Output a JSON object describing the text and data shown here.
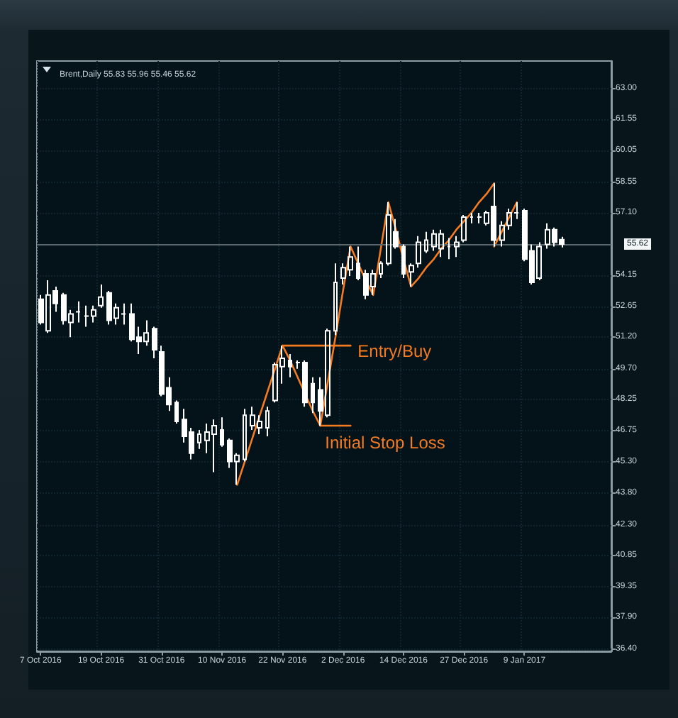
{
  "chart_data": {
    "type": "candlestick",
    "title": "Brent,Daily 55.83 55.96 55.46 55.62",
    "categories": [
      "7 Oct 2016",
      null,
      null,
      null,
      null,
      null,
      null,
      null,
      "19 Oct 2016",
      null,
      null,
      null,
      null,
      null,
      null,
      null,
      "31 Oct 2016",
      null,
      null,
      null,
      null,
      null,
      null,
      null,
      "10 Nov 2016",
      null,
      null,
      null,
      null,
      null,
      null,
      null,
      "22 Nov 2016",
      null,
      null,
      null,
      null,
      null,
      null,
      null,
      "2 Dec 2016",
      null,
      null,
      null,
      null,
      null,
      null,
      null,
      "14 Dec 2016",
      null,
      null,
      null,
      null,
      null,
      null,
      null,
      "27 Dec 2016",
      null,
      null,
      null,
      null,
      null,
      null,
      null,
      "9 Jan 2017",
      null,
      null,
      null,
      null,
      null,
      null,
      null,
      null,
      null,
      null,
      null
    ],
    "series": [
      {
        "color": "#ffffff",
        "ohlc": [
          [
            53.0,
            53.2,
            51.8,
            51.9
          ],
          [
            51.5,
            53.9,
            51.4,
            53.2
          ],
          [
            53.4,
            53.6,
            52.4,
            52.8
          ],
          [
            53.2,
            53.3,
            51.8,
            52.0
          ],
          [
            51.9,
            52.5,
            51.2,
            52.3
          ],
          [
            52.4,
            52.9,
            51.9,
            52.4
          ],
          [
            52.2,
            52.7,
            51.7,
            52.2
          ],
          [
            52.2,
            52.7,
            51.9,
            52.5
          ],
          [
            52.7,
            53.7,
            52.6,
            53.1
          ],
          [
            53.3,
            53.4,
            51.8,
            52.0
          ],
          [
            52.1,
            52.8,
            51.8,
            52.6
          ],
          [
            52.3,
            52.8,
            51.8,
            52.3
          ],
          [
            52.3,
            52.8,
            51.0,
            51.1
          ],
          [
            51.2,
            51.7,
            50.4,
            51.0
          ],
          [
            51.0,
            52.0,
            50.8,
            51.4
          ],
          [
            51.6,
            51.7,
            50.2,
            50.6
          ],
          [
            50.5,
            50.8,
            48.4,
            48.5
          ],
          [
            48.8,
            49.3,
            47.7,
            48.0
          ],
          [
            48.1,
            48.2,
            47.1,
            47.2
          ],
          [
            47.3,
            47.8,
            46.2,
            46.5
          ],
          [
            46.7,
            46.9,
            45.4,
            45.7
          ],
          [
            46.2,
            46.8,
            45.9,
            46.6
          ],
          [
            46.3,
            47.1,
            45.7,
            46.7
          ],
          [
            46.6,
            47.3,
            44.8,
            47.0
          ],
          [
            46.8,
            47.4,
            46.0,
            46.1
          ],
          [
            46.3,
            46.4,
            45.0,
            45.3
          ],
          [
            45.3,
            45.7,
            44.2,
            45.6
          ],
          [
            45.4,
            47.8,
            45.3,
            47.5
          ],
          [
            47.0,
            47.9,
            46.8,
            47.5
          ],
          [
            46.9,
            47.5,
            46.6,
            47.2
          ],
          [
            46.9,
            47.9,
            46.5,
            47.7
          ],
          [
            48.2,
            50.0,
            48.1,
            49.9
          ],
          [
            49.8,
            50.8,
            49.0,
            50.2
          ],
          [
            50.1,
            50.4,
            49.3,
            49.8
          ],
          [
            50.0,
            50.1,
            49.7,
            50.0
          ],
          [
            50.0,
            50.1,
            47.9,
            48.1
          ],
          [
            49.0,
            49.3,
            47.6,
            48.1
          ],
          [
            48.7,
            49.3,
            47.0,
            47.7
          ],
          [
            47.5,
            51.6,
            47.4,
            51.5
          ],
          [
            51.5,
            54.7,
            51.3,
            53.8
          ],
          [
            54.0,
            54.7,
            53.7,
            54.5
          ],
          [
            54.4,
            55.5,
            54.1,
            55.0
          ],
          [
            54.7,
            55.5,
            53.9,
            54.0
          ],
          [
            54.2,
            54.4,
            53.0,
            53.2
          ],
          [
            53.6,
            54.4,
            53.2,
            54.2
          ],
          [
            54.2,
            54.8,
            54.0,
            54.7
          ],
          [
            54.7,
            57.6,
            54.6,
            57.0
          ],
          [
            56.2,
            56.8,
            55.4,
            55.5
          ],
          [
            55.5,
            55.6,
            54.0,
            54.2
          ],
          [
            54.3,
            54.7,
            53.6,
            54.6
          ],
          [
            54.7,
            56.0,
            54.5,
            55.7
          ],
          [
            55.3,
            56.2,
            55.2,
            55.8
          ],
          [
            55.5,
            56.3,
            55.3,
            56.1
          ],
          [
            55.4,
            56.3,
            55.0,
            56.1
          ],
          [
            55.5,
            55.9,
            54.9,
            55.5
          ],
          [
            55.5,
            56.0,
            55.0,
            55.7
          ],
          [
            55.8,
            57.0,
            55.7,
            56.9
          ],
          [
            56.9,
            57.1,
            56.6,
            56.9
          ],
          [
            56.9,
            57.1,
            56.6,
            56.9
          ],
          [
            56.6,
            57.2,
            56.5,
            57.1
          ],
          [
            57.4,
            58.5,
            55.5,
            55.8
          ],
          [
            55.8,
            56.7,
            55.5,
            56.5
          ],
          [
            56.5,
            57.3,
            56.3,
            57.1
          ],
          [
            57.1,
            57.6,
            56.8,
            57.1
          ],
          [
            57.2,
            57.3,
            54.8,
            54.9
          ],
          [
            55.3,
            55.6,
            53.7,
            53.8
          ],
          [
            54.0,
            55.7,
            53.9,
            55.5
          ],
          [
            55.6,
            56.6,
            55.4,
            56.3
          ],
          [
            56.3,
            56.4,
            55.5,
            55.7
          ],
          [
            55.83,
            55.96,
            55.46,
            55.62
          ],
          null,
          null,
          null,
          null,
          null,
          null
        ]
      },
      {
        "type": "line",
        "color": "#f47b20",
        "values": [
          null,
          null,
          null,
          null,
          null,
          null,
          null,
          null,
          null,
          null,
          null,
          null,
          null,
          null,
          null,
          null,
          null,
          null,
          null,
          null,
          null,
          null,
          null,
          null,
          null,
          null,
          44.2,
          45.3,
          46.4,
          47.5,
          48.6,
          49.7,
          50.8,
          50.1,
          49.3,
          48.5,
          47.7,
          47.0,
          49.1,
          51.2,
          53.4,
          55.5,
          54.7,
          53.9,
          53.2,
          55.4,
          57.6,
          56.3,
          54.9,
          53.6,
          54.0,
          54.5,
          54.9,
          55.4,
          55.8,
          56.3,
          56.7,
          57.1,
          57.6,
          58.0,
          58.5,
          null,
          null,
          null,
          null,
          null,
          null,
          null,
          null,
          null,
          null,
          null,
          null,
          null,
          null,
          null
        ]
      },
      {
        "type": "line",
        "color": "#f47b20",
        "values": [
          null,
          null,
          null,
          null,
          null,
          null,
          null,
          null,
          null,
          null,
          null,
          null,
          null,
          null,
          null,
          null,
          null,
          null,
          null,
          null,
          null,
          null,
          null,
          null,
          null,
          null,
          null,
          null,
          null,
          null,
          null,
          null,
          null,
          null,
          null,
          null,
          null,
          null,
          null,
          null,
          null,
          null,
          null,
          null,
          null,
          null,
          null,
          null,
          null,
          null,
          null,
          null,
          null,
          null,
          null,
          null,
          null,
          null,
          null,
          null,
          55.5,
          56.2,
          56.9,
          57.6,
          null,
          null,
          null,
          null,
          null,
          null,
          null,
          null,
          null,
          null,
          null,
          null
        ]
      },
      {
        "type": "line",
        "name": "Entry/Buy",
        "color": "#f47b20",
        "values": [
          null,
          null,
          null,
          null,
          null,
          null,
          null,
          null,
          null,
          null,
          null,
          null,
          null,
          null,
          null,
          null,
          null,
          null,
          null,
          null,
          null,
          null,
          null,
          null,
          null,
          null,
          null,
          null,
          null,
          null,
          null,
          null,
          50.8,
          50.8,
          50.8,
          50.8,
          50.8,
          50.8,
          50.8,
          50.8,
          50.8,
          50.8,
          null,
          null,
          null,
          null,
          null,
          null,
          null,
          null,
          null,
          null,
          null,
          null,
          null,
          null,
          null,
          null,
          null,
          null,
          null,
          null,
          null,
          null,
          null,
          null,
          null,
          null,
          null,
          null,
          null,
          null,
          null,
          null,
          null,
          null
        ]
      },
      {
        "type": "line",
        "name": "Initial Stop Loss",
        "color": "#f47b20",
        "values": [
          null,
          null,
          null,
          null,
          null,
          null,
          null,
          null,
          null,
          null,
          null,
          null,
          null,
          null,
          null,
          null,
          null,
          null,
          null,
          null,
          null,
          null,
          null,
          null,
          null,
          null,
          null,
          null,
          null,
          null,
          null,
          null,
          null,
          null,
          null,
          null,
          null,
          47.0,
          47.0,
          47.0,
          47.0,
          47.0,
          null,
          null,
          null,
          null,
          null,
          null,
          null,
          null,
          null,
          null,
          null,
          null,
          null,
          null,
          null,
          null,
          null,
          null,
          null,
          null,
          null,
          null,
          null,
          null,
          null,
          null,
          null,
          null,
          null,
          null,
          null,
          null,
          null,
          null
        ]
      }
    ],
    "ylim": [
      36.3,
      64.3
    ],
    "yticks": [
      {
        "value": 63,
        "label": "63.00"
      },
      {
        "value": 61.55,
        "label": "61.55"
      },
      {
        "value": 60.05,
        "label": "60.05"
      },
      {
        "value": 58.55,
        "label": "58.55"
      },
      {
        "value": 57.1,
        "label": "57.10"
      },
      {
        "value": 54.15,
        "label": "54.15"
      },
      {
        "value": 52.65,
        "label": "52.65"
      },
      {
        "value": 51.2,
        "label": "51.20"
      },
      {
        "value": 49.7,
        "label": "49.70"
      },
      {
        "value": 48.25,
        "label": "48.25"
      },
      {
        "value": 46.75,
        "label": "46.75"
      },
      {
        "value": 45.3,
        "label": "45.30"
      },
      {
        "value": 43.8,
        "label": "43.80"
      },
      {
        "value": 42.3,
        "label": "42.30"
      },
      {
        "value": 40.85,
        "label": "40.85"
      },
      {
        "value": 39.35,
        "label": "39.35"
      },
      {
        "value": 37.9,
        "label": "37.90"
      },
      {
        "value": 36.4,
        "label": "36.40"
      }
    ],
    "ref_lines": [
      {
        "axis": "y",
        "value": 55.62,
        "label": "55.62",
        "color": "#59666c"
      }
    ],
    "grid": true
  }
}
